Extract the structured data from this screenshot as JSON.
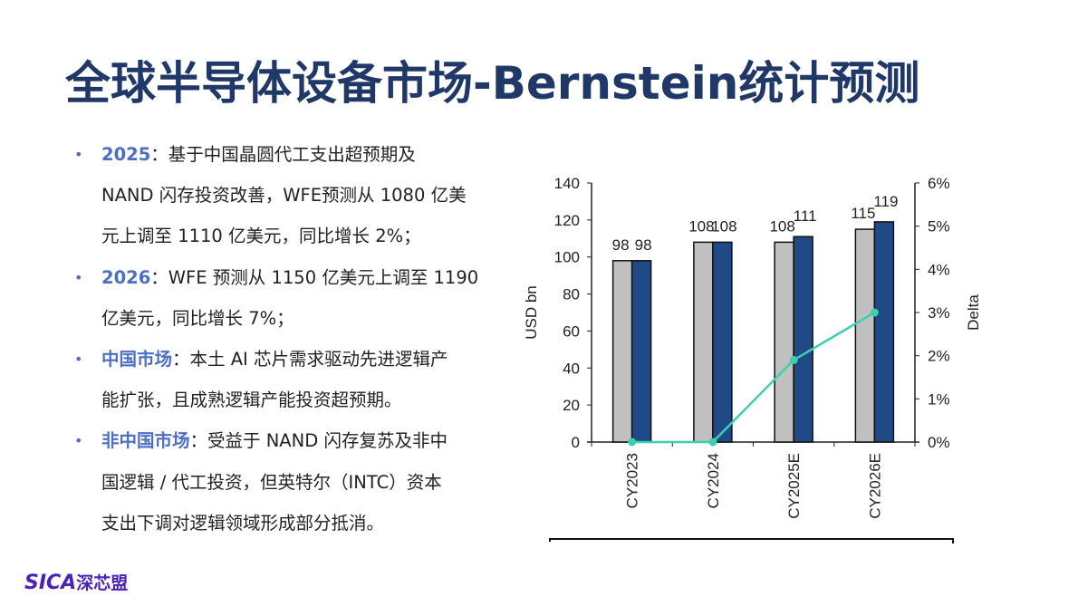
{
  "title": "全球半导体设备市场-Bernstein统计预测",
  "bullets": [
    {
      "label": "2025",
      "lines": [
        "：基于中国晶圆代工支出超预期及",
        "NAND 闪存投资改善，WFE预测从 1080 亿美",
        "元上调至 1110 亿美元，同比增长 2%；"
      ]
    },
    {
      "label": "2026",
      "lines": [
        "：WFE 预测从 1150 亿美元上调至 1190",
        "亿美元，同比增长 7%；"
      ]
    },
    {
      "label": "中国市场",
      "lines": [
        "：本土 AI 芯片需求驱动先进逻辑产",
        "能扩张，且成熟逻辑产能投资超预期。"
      ]
    },
    {
      "label": "非中国市场",
      "lines": [
        "：受益于 NAND 闪存复苏及非中",
        "国逻辑 / 代工投资，但英特尔（INTC）资本",
        "支出下调对逻辑领域形成部分抵消。"
      ]
    }
  ],
  "logo": {
    "latin": "SICA",
    "cn": "深芯盟"
  },
  "chart_data": {
    "type": "bar",
    "categories": [
      "CY2023",
      "CY2024",
      "CY2025E",
      "CY2026E"
    ],
    "series": [
      {
        "values": [
          98,
          108,
          108,
          115
        ],
        "color": "#c0c0c0",
        "axis": "left"
      },
      {
        "values": [
          98,
          108,
          111,
          119
        ],
        "color": "#1f4a86",
        "axis": "left"
      },
      {
        "type": "line",
        "values": [
          0,
          0,
          1.9,
          3.0
        ],
        "color": "#3cd0b0",
        "axis": "right"
      }
    ],
    "data_labels": [
      [
        "98",
        "98"
      ],
      [
        "108",
        "108"
      ],
      [
        "108",
        "111"
      ],
      [
        "115",
        "119"
      ]
    ],
    "ylabel": "USD bn",
    "y2label": "Delta",
    "ylim": [
      0,
      140
    ],
    "yticks": [
      "0",
      "20",
      "40",
      "60",
      "80",
      "100",
      "120",
      "140"
    ],
    "y2lim": [
      0,
      6
    ],
    "y2ticks": [
      "0%",
      "1%",
      "2%",
      "3%",
      "4%",
      "5%",
      "6%"
    ],
    "grid": false
  }
}
